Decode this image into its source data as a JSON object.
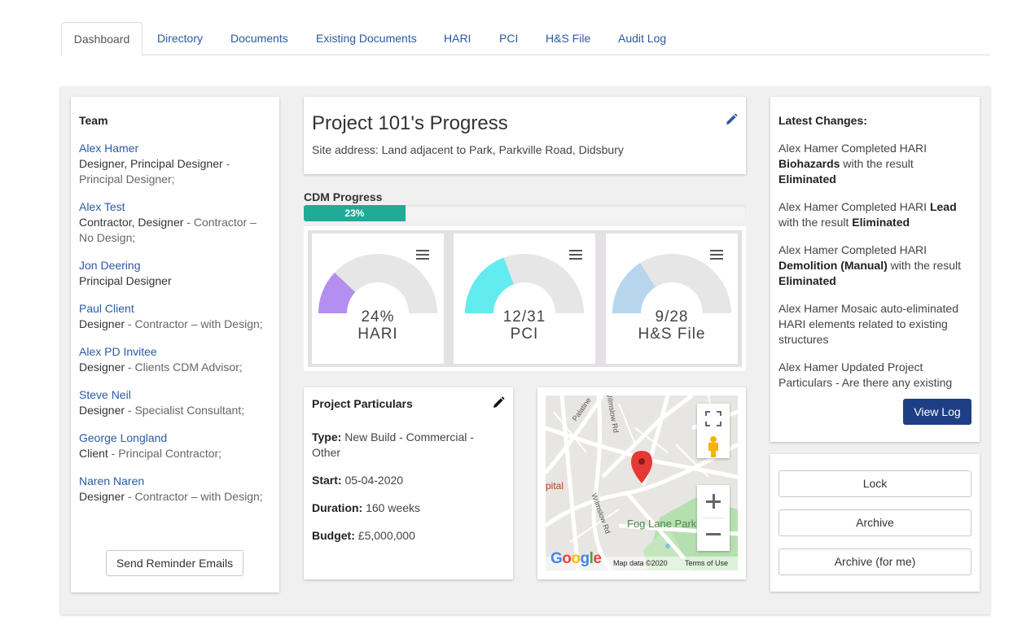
{
  "tabs": [
    "Dashboard",
    "Directory",
    "Documents",
    "Existing Documents",
    "HARI",
    "PCI",
    "H&S File",
    "Audit Log"
  ],
  "team": {
    "title": "Team",
    "members": [
      {
        "name": "Alex Hamer",
        "role": "Designer, Principal Designer",
        "sub1": " - ",
        "sub2": "Principal Designer;"
      },
      {
        "name": "Alex Test",
        "role": "Contractor, Designer",
        "sub1": " - Contractor – ",
        "sub2": "No Design;"
      },
      {
        "name": "Jon Deering",
        "role": "Principal Designer",
        "sub1": "",
        "sub2": ""
      },
      {
        "name": "Paul Client",
        "role": "Designer",
        "sub1": " - Contractor – with Design;",
        "sub2": ""
      },
      {
        "name": "Alex PD Invitee",
        "role": "Designer",
        "sub1": " - Clients CDM Advisor;",
        "sub2": ""
      },
      {
        "name": "Steve Neil",
        "role": "Designer",
        "sub1": " - Specialist Consultant;",
        "sub2": ""
      },
      {
        "name": "George Longland",
        "role": "Client",
        "sub1": " - Principal Contractor;",
        "sub2": ""
      },
      {
        "name": "Naren Naren",
        "role": "Designer",
        "sub1": " - Contractor – with Design;",
        "sub2": ""
      }
    ],
    "reminder_button": "Send Reminder Emails"
  },
  "project": {
    "title": "Project 101's Progress",
    "address": "Site address: Land adjacent to Park, Parkville Road, Didsbury"
  },
  "cdm": {
    "label": "CDM Progress",
    "percent": 23,
    "percent_label": "23%"
  },
  "gauges": [
    {
      "value_label": "24%",
      "name": "HARI",
      "fraction": 0.24,
      "color": "#b48ef0"
    },
    {
      "value_label": "12/31",
      "name": "PCI",
      "fraction": 0.387,
      "color": "#62ecf0"
    },
    {
      "value_label": "9/28",
      "name": "H&S File",
      "fraction": 0.321,
      "color": "#b7d6ee"
    }
  ],
  "particulars": {
    "title": "Project Particulars",
    "type_label": "Type:",
    "type_value": " New Build - Commercial - Other",
    "start_label": "Start:",
    "start_value": " 05-04-2020",
    "duration_label": "Duration:",
    "duration_value": " 160 weeks",
    "budget_label": "Budget:",
    "budget_value": " £5,000,000"
  },
  "map": {
    "labels": {
      "palatine": "Palatine",
      "wilmslow_top": "Wilmslow Rd",
      "wilmslow_bottom": "Wilmslow Rd",
      "park": "Fog Lane Park",
      "hospital": "pital"
    },
    "google": "Google",
    "map_data": "Map data ©2020",
    "terms": "Terms of Use"
  },
  "changes": {
    "title": "Latest Changes:",
    "items": [
      {
        "t1": "Alex Hamer Completed HARI ",
        "b1": "Biohazards",
        "t2": " with the result ",
        "b2": "Eliminated"
      },
      {
        "t1": "Alex Hamer Completed HARI ",
        "b1": "Lead",
        "t2": " with the result ",
        "b2": "Eliminated"
      },
      {
        "t1": "Alex Hamer Completed HARI ",
        "b1": "Demolition (Manual)",
        "t2": " with the result ",
        "b2": "Eliminated"
      },
      {
        "t1": "Alex Hamer Mosaic auto-eliminated HARI elements related to existing structures",
        "b1": "",
        "t2": "",
        "b2": ""
      },
      {
        "t1": "Alex Hamer Updated Project Particulars - Are there any existing",
        "b1": "",
        "t2": "",
        "b2": ""
      }
    ],
    "view_log": "View Log"
  },
  "actions": {
    "lock": "Lock",
    "archive": "Archive",
    "archive_me": "Archive (for me)"
  }
}
